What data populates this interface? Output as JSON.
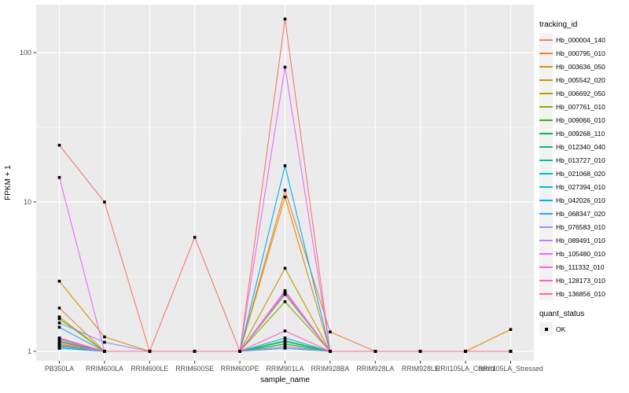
{
  "chart_data": {
    "type": "line",
    "title": "",
    "xlabel": "sample_name",
    "ylabel": "FPKM + 1",
    "y_scale": "log10",
    "y_ticks": [
      1,
      10,
      100
    ],
    "y_minor_gridlines": [
      3.1623,
      31.623
    ],
    "ylim": [
      0.86,
      215
    ],
    "grid": true,
    "legend_position": "right",
    "panel_bg": "#EBEBEB",
    "grid_color": "#FFFFFF",
    "tick_label_color": "#4D4D4D",
    "axis_title_color": "#000000",
    "point_color": "#000000",
    "categories": [
      "PB350LA",
      "RRIM600LA",
      "RRIM600LE",
      "RRIM600SE",
      "RRIM600PE",
      "RRIM901LA",
      "RRIM928BA",
      "RRIM928LA",
      "RRIM928LE",
      "RRII105LA_Control",
      "RRII105LA_Stressed"
    ],
    "series": [
      {
        "name": "Hb_000004_140",
        "color": "#F8766D",
        "values": [
          24,
          10,
          1,
          5.8,
          1,
          168,
          1,
          1,
          1,
          1,
          1
        ]
      },
      {
        "name": "Hb_000795_010",
        "color": "#EA8331",
        "values": [
          1.95,
          1,
          1,
          1,
          1,
          12,
          1.35,
          1,
          1,
          1,
          1
        ]
      },
      {
        "name": "Hb_003636_050",
        "color": "#D89000",
        "values": [
          2.95,
          1.25,
          1,
          1,
          1,
          10.8,
          1,
          1,
          1,
          1,
          1.4
        ]
      },
      {
        "name": "Hb_005542_020",
        "color": "#C09B00",
        "values": [
          1.15,
          1,
          1,
          1,
          1,
          3.6,
          1,
          1,
          1,
          1,
          1
        ]
      },
      {
        "name": "Hb_006692_050",
        "color": "#A3A500",
        "values": [
          1.7,
          1,
          1,
          1,
          1,
          2.4,
          1,
          1,
          1,
          1,
          1
        ]
      },
      {
        "name": "Hb_007761_010",
        "color": "#7CAE00",
        "values": [
          1.65,
          1,
          1,
          1,
          1,
          2.15,
          1,
          1,
          1,
          1,
          1
        ]
      },
      {
        "name": "Hb_009066_010",
        "color": "#39B600",
        "values": [
          1.1,
          1,
          1,
          1,
          1,
          1.16,
          1,
          1,
          1,
          1,
          1
        ]
      },
      {
        "name": "Hb_009268_110",
        "color": "#00BB4E",
        "values": [
          1.08,
          1,
          1,
          1,
          1,
          1.12,
          1,
          1,
          1,
          1,
          1
        ]
      },
      {
        "name": "Hb_012340_040",
        "color": "#00BF7D",
        "values": [
          1.17,
          1,
          1,
          1,
          1,
          1.12,
          1,
          1,
          1,
          1,
          1
        ]
      },
      {
        "name": "Hb_013727_010",
        "color": "#00C1A3",
        "values": [
          1.22,
          1,
          1,
          1,
          1,
          1.18,
          1,
          1,
          1,
          1,
          1
        ]
      },
      {
        "name": "Hb_021068_020",
        "color": "#00BFC4",
        "values": [
          1.05,
          1,
          1,
          1,
          1,
          1.23,
          1,
          1,
          1,
          1,
          1
        ]
      },
      {
        "name": "Hb_027394_010",
        "color": "#00BAE0",
        "values": [
          1.12,
          1,
          1,
          1,
          1,
          1.05,
          1,
          1,
          1,
          1,
          1
        ]
      },
      {
        "name": "Hb_042026_010",
        "color": "#00B0F6",
        "values": [
          1.05,
          1,
          1,
          1,
          1,
          17.5,
          1,
          1,
          1,
          1,
          1
        ]
      },
      {
        "name": "Hb_068347_020",
        "color": "#35A2FF",
        "values": [
          1.45,
          1,
          1,
          1,
          1,
          1.05,
          1,
          1,
          1,
          1,
          1
        ]
      },
      {
        "name": "Hb_076583_010",
        "color": "#9590FF",
        "values": [
          1.55,
          1.15,
          1,
          1,
          1,
          2.45,
          1,
          1,
          1,
          1,
          1
        ]
      },
      {
        "name": "Hb_089491_010",
        "color": "#C77CFF",
        "values": [
          1.1,
          1,
          1,
          1,
          1,
          2.5,
          1,
          1,
          1,
          1,
          1
        ]
      },
      {
        "name": "Hb_105480_010",
        "color": "#E76BF3",
        "values": [
          14.6,
          1,
          1,
          1,
          1,
          80,
          1,
          1,
          1,
          1,
          1
        ]
      },
      {
        "name": "Hb_111332_010",
        "color": "#FA62DB",
        "values": [
          1.2,
          1,
          1,
          1,
          1,
          2.55,
          1,
          1,
          1,
          1,
          1
        ]
      },
      {
        "name": "Hb_128173_010",
        "color": "#FF62BC",
        "values": [
          1.23,
          1,
          1,
          1,
          1,
          1.37,
          1,
          1,
          1,
          1,
          1
        ]
      },
      {
        "name": "Hb_136856_010",
        "color": "#FF6A98",
        "values": [
          1.12,
          1,
          1,
          1,
          1,
          1.08,
          1,
          1,
          1,
          1,
          1
        ]
      }
    ]
  },
  "legend": {
    "tracking_title": "tracking_id",
    "quant_title": "quant_status",
    "quant_items": [
      {
        "label": "OK"
      }
    ]
  }
}
